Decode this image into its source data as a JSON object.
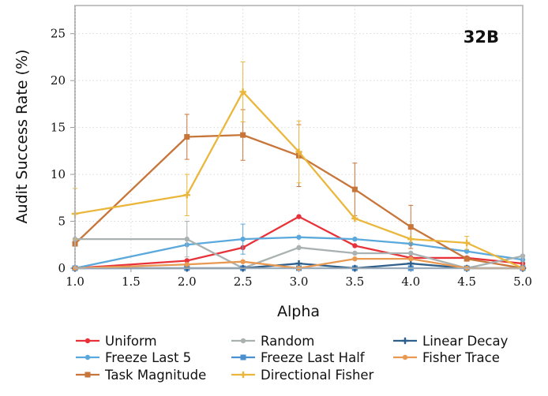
{
  "chart_data": {
    "type": "line",
    "annotation": "32B",
    "xlabel": "Alpha",
    "ylabel": "Audit Success Rate (%)",
    "xlim": [
      1.0,
      5.0
    ],
    "ylim": [
      0,
      28
    ],
    "x_ticks": [
      "1.0",
      "1.5",
      "2.0",
      "2.5",
      "3.0",
      "3.5",
      "4.0",
      "4.5",
      "5.0"
    ],
    "y_ticks": [
      "0",
      "5",
      "10",
      "15",
      "20",
      "25"
    ],
    "grid": true,
    "legend_position": "bottom",
    "series": [
      {
        "name": "Uniform",
        "color": "#e8323a",
        "marker": "circle",
        "x": [
          1.0,
          2.0,
          2.5,
          3.0,
          3.5,
          4.0,
          4.5,
          5.0
        ],
        "y": [
          0,
          0.8,
          2.2,
          5.5,
          2.4,
          1.1,
          1.1,
          0.5
        ],
        "err": [
          0,
          0,
          0,
          0,
          0,
          0,
          0,
          0
        ]
      },
      {
        "name": "Freeze Last 5",
        "color": "#5aa8dc",
        "marker": "circle",
        "x": [
          1.0,
          2.0,
          2.5,
          3.0,
          3.5,
          4.0,
          4.5,
          5.0
        ],
        "y": [
          0,
          2.5,
          3.1,
          3.3,
          3.1,
          2.6,
          1.8,
          0.9
        ],
        "err": [
          0,
          0,
          1.6,
          0,
          0,
          0,
          0,
          0
        ]
      },
      {
        "name": "Task Magnitude",
        "color": "#c8753a",
        "marker": "square",
        "x": [
          1.0,
          2.0,
          2.5,
          3.0,
          3.5,
          4.0,
          4.5,
          5.0
        ],
        "y": [
          2.6,
          14.0,
          14.2,
          12.0,
          8.4,
          4.4,
          1.0,
          0
        ],
        "err": [
          0,
          2.4,
          2.7,
          3.3,
          2.8,
          2.3,
          0,
          0
        ]
      },
      {
        "name": "Random",
        "color": "#a9b1b1",
        "marker": "circle",
        "x": [
          1.0,
          2.0,
          2.5,
          3.0,
          3.5,
          4.0,
          4.5,
          5.0
        ],
        "y": [
          3.1,
          3.1,
          0,
          2.2,
          1.6,
          1.6,
          0,
          1.3
        ],
        "err": [
          0,
          1.9,
          0,
          0,
          0,
          0,
          0,
          0
        ]
      },
      {
        "name": "Freeze Last Half",
        "color": "#4a8fcf",
        "marker": "square",
        "x": [
          1.0,
          2.0,
          2.5,
          3.0,
          3.5,
          4.0,
          4.5,
          5.0
        ],
        "y": [
          0,
          0,
          0,
          0,
          0,
          0,
          0,
          0
        ],
        "err": [
          0,
          0,
          0,
          0,
          0,
          0,
          0,
          0
        ]
      },
      {
        "name": "Directional Fisher",
        "color": "#eab73c",
        "marker": "plus",
        "x": [
          1.0,
          2.0,
          2.5,
          3.0,
          3.5,
          4.0,
          4.5,
          5.0
        ],
        "y": [
          5.8,
          7.8,
          18.8,
          12.4,
          5.3,
          3.1,
          2.7,
          0
        ],
        "err": [
          2.7,
          2.2,
          3.2,
          3.3,
          0,
          0,
          0.7,
          0
        ]
      },
      {
        "name": "Linear Decay",
        "color": "#2f5f8a",
        "marker": "plus",
        "x": [
          1.0,
          2.0,
          2.5,
          3.0,
          3.5,
          4.0,
          4.5,
          5.0
        ],
        "y": [
          0,
          0,
          0,
          0.5,
          0,
          0.5,
          0,
          0
        ],
        "err": [
          0,
          0,
          0,
          0,
          0,
          0,
          0,
          0
        ]
      },
      {
        "name": "Fisher Trace",
        "color": "#e89a52",
        "marker": "circle",
        "x": [
          1.0,
          2.0,
          2.5,
          3.0,
          3.5,
          4.0,
          4.5,
          5.0
        ],
        "y": [
          0,
          0.4,
          0.7,
          0,
          1.0,
          1.0,
          0,
          0
        ],
        "err": [
          0,
          0,
          0,
          0,
          0,
          0,
          0,
          0
        ]
      }
    ]
  }
}
